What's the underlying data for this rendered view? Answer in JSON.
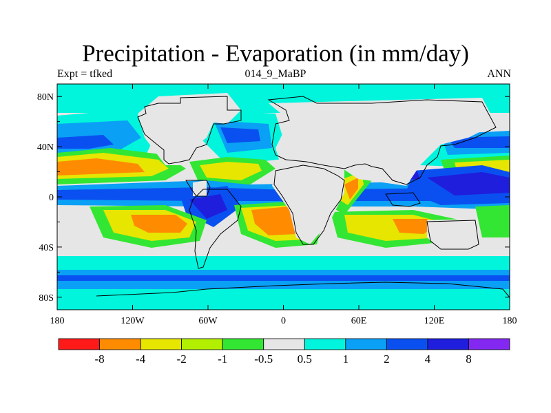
{
  "title": "Precipitation - Evaporation (in mm/day)",
  "subtitle_left": "Expt = tfked",
  "subtitle_center": "014_9_MaBP",
  "subtitle_right": "ANN",
  "map": {
    "lon_range": [
      -180,
      180
    ],
    "lat_range": [
      -90,
      90
    ],
    "lon_ticks": [
      {
        "value": -180,
        "label": "180"
      },
      {
        "value": -120,
        "label": "120W"
      },
      {
        "value": -60,
        "label": "60W"
      },
      {
        "value": 0,
        "label": "0"
      },
      {
        "value": 60,
        "label": "60E"
      },
      {
        "value": 120,
        "label": "120E"
      },
      {
        "value": 180,
        "label": "180"
      }
    ],
    "lat_ticks": [
      {
        "value": 80,
        "label": "80N"
      },
      {
        "value": 40,
        "label": "40N"
      },
      {
        "value": 0,
        "label": "0"
      },
      {
        "value": -40,
        "label": "40S"
      },
      {
        "value": -80,
        "label": "80S"
      }
    ]
  },
  "colorbar": {
    "colors": [
      "#ff1a1a",
      "#ff8c00",
      "#e6e600",
      "#b3f000",
      "#33e633",
      "#e6e6e6",
      "#00f5dc",
      "#0aa0f5",
      "#0a50f0",
      "#1e1edc",
      "#8228f0"
    ],
    "labels": [
      "-8",
      "-4",
      "-2",
      "-1",
      "-0.5",
      "0.5",
      "1",
      "2",
      "4",
      "8"
    ]
  }
}
